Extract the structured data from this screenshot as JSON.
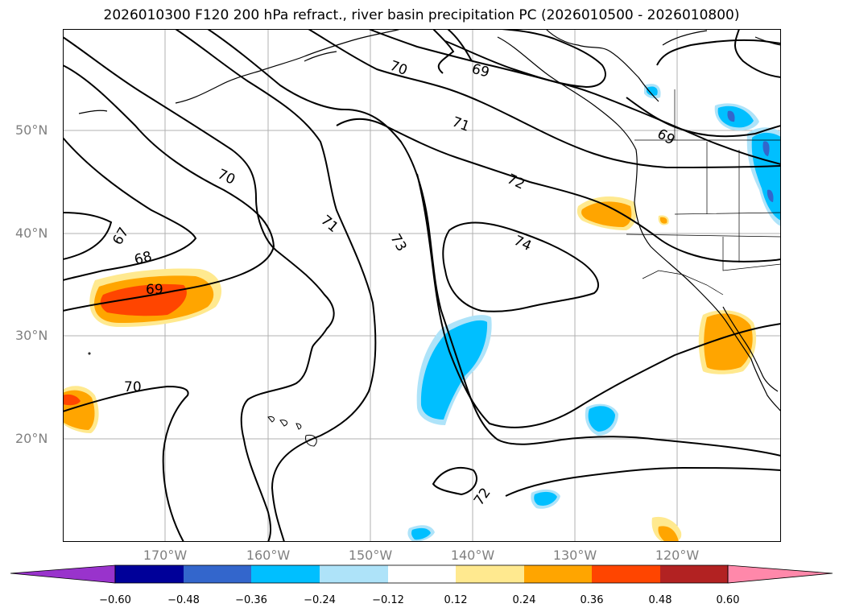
{
  "title": "2026010300 F120 200 hPa refract., river basin precipitation PC (2026010500 - 2026010800)",
  "lat_labels": [
    "50°N",
    "40°N",
    "30°N",
    "20°N"
  ],
  "lon_labels": [
    "170°W",
    "160°W",
    "150°W",
    "140°W",
    "130°W",
    "120°W"
  ],
  "contour_labels": [
    "70",
    "69",
    "71",
    "72",
    "69",
    "70",
    "71",
    "73",
    "74",
    "67",
    "68",
    "69",
    "70",
    "72"
  ],
  "colorbar": {
    "ticks": [
      "−0.60",
      "−0.48",
      "−0.36",
      "−0.24",
      "−0.12",
      "0.12",
      "0.24",
      "0.36",
      "0.48",
      "0.60"
    ],
    "colors": [
      "#9933cc",
      "#000099",
      "#3366cc",
      "#00bfff",
      "#aee3f9",
      "#ffffff",
      "#ffe98f",
      "#ffa500",
      "#ff4500",
      "#b22222",
      "#ff88aa"
    ]
  },
  "colors": {
    "positive_light": "#ffe98f",
    "positive_mid": "#ffa500",
    "positive_high": "#ff4500",
    "negative_light": "#aee3f9",
    "negative_mid": "#00bfff",
    "negative_high": "#3366cc"
  }
}
